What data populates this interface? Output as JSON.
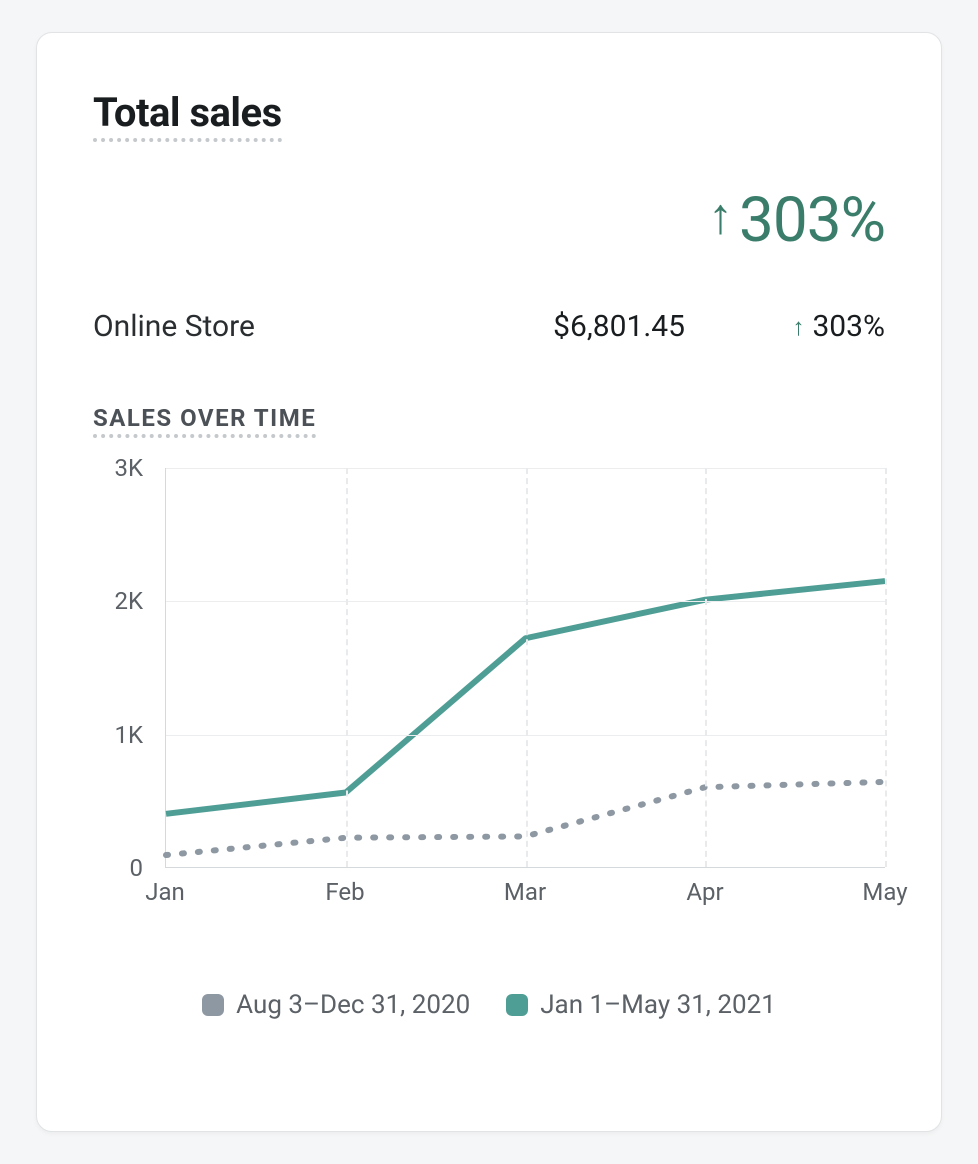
{
  "card": {
    "title": "Total sales",
    "headline": {
      "arrow": "↑",
      "value": "303%",
      "color": "#3b7d6b"
    },
    "row": {
      "label": "Online Store",
      "amount": "$6,801.45",
      "delta_arrow": "↑",
      "delta_value": "303%",
      "delta_arrow_color": "#3b7d6b"
    },
    "section_label": "SALES OVER TIME"
  },
  "chart": {
    "type": "line",
    "ylim": [
      0,
      3000
    ],
    "yticks": [
      0,
      1000,
      2000,
      3000
    ],
    "ytick_labels": [
      "0",
      "1K",
      "2K",
      "3K"
    ],
    "categories": [
      "Jan",
      "Feb",
      "Mar",
      "Apr",
      "May"
    ],
    "series": [
      {
        "key": "previous",
        "legend": "Aug 3–Dec 31, 2020",
        "color": "#8d98a3",
        "line_width": 6,
        "dash": "2,14",
        "linecap": "round",
        "values": [
          90,
          220,
          230,
          600,
          640
        ]
      },
      {
        "key": "current",
        "legend": "Jan 1–May 31, 2021",
        "color": "#4f9e95",
        "line_width": 6,
        "dash": null,
        "linecap": "butt",
        "values": [
          400,
          560,
          1720,
          2010,
          2150
        ]
      }
    ],
    "grid_color": "#ebedee",
    "vgrid_color": "#e8eaec",
    "axis_color": "#d6d9dc",
    "label_fontsize": 24,
    "label_color": "#5b6166",
    "background_color": "#ffffff"
  },
  "legend_swatches": {
    "previous_color": "#8d98a3",
    "current_color": "#4f9e95"
  }
}
